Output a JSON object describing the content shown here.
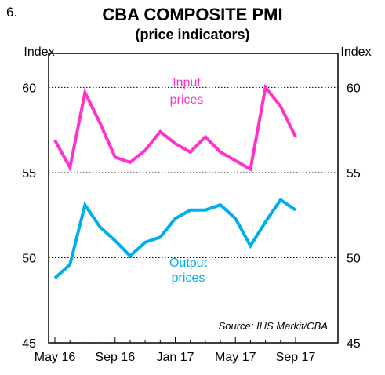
{
  "figure_number": "6.",
  "chart_data": {
    "type": "line",
    "title": "CBA COMPOSITE PMI",
    "subtitle": "(price indicators)",
    "ylabel_left": "Index",
    "ylabel_right": "Index",
    "ylim": [
      45,
      62
    ],
    "yticks": [
      45,
      50,
      55,
      60
    ],
    "grid": "dotted horizontal",
    "x": [
      "May 16",
      "Jun 16",
      "Jul 16",
      "Aug 16",
      "Sep 16",
      "Oct 16",
      "Nov 16",
      "Dec 16",
      "Jan 17",
      "Feb 17",
      "Mar 17",
      "Apr 17",
      "May 17",
      "Jun 17",
      "Jul 17",
      "Aug 17",
      "Sep 17"
    ],
    "xtick_labels": [
      "May 16",
      "Sep 16",
      "Jan 17",
      "May 17",
      "Sep 17"
    ],
    "series": [
      {
        "name": "Input prices",
        "label_lines": [
          "Input",
          "prices"
        ],
        "color": "#ff33cc",
        "values": [
          56.9,
          55.3,
          59.7,
          57.9,
          55.9,
          55.6,
          56.3,
          57.4,
          56.7,
          56.2,
          57.1,
          56.2,
          55.7,
          55.2,
          60.0,
          58.9,
          57.1
        ]
      },
      {
        "name": "Output prices",
        "label_lines": [
          "Output",
          "prices"
        ],
        "color": "#00aeef",
        "values": [
          48.8,
          49.6,
          53.1,
          51.8,
          51.0,
          50.1,
          50.9,
          51.2,
          52.3,
          52.8,
          52.8,
          53.1,
          52.3,
          50.7,
          52.1,
          53.4,
          52.8
        ]
      }
    ],
    "source": "Source: IHS Markit/CBA"
  }
}
